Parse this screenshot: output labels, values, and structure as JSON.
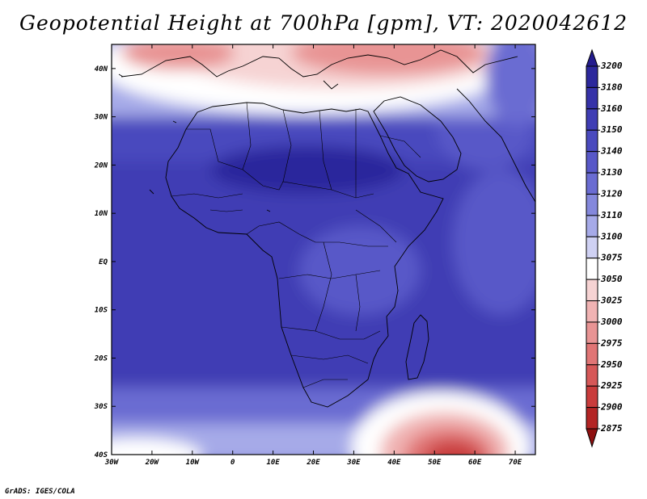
{
  "title": "Geopotential Height at 700hPa [gpm], VT: 2020042612",
  "footer": "GrADS: IGES/COLA",
  "map": {
    "projection": "latlon",
    "lon_range": [
      -30,
      75
    ],
    "lat_range": [
      -40,
      45
    ],
    "lat_ticks": [
      "40N",
      "30N",
      "20N",
      "10N",
      "EQ",
      "10S",
      "20S",
      "30S",
      "40S"
    ],
    "lon_ticks": [
      "30W",
      "20W",
      "10W",
      "0",
      "10E",
      "20E",
      "30E",
      "40E",
      "50E",
      "60E",
      "70E"
    ]
  },
  "colorbar": {
    "levels": [
      "3200",
      "3180",
      "3160",
      "3150",
      "3140",
      "3130",
      "3120",
      "3110",
      "3100",
      "3075",
      "3050",
      "3025",
      "3000",
      "2975",
      "2950",
      "2925",
      "2900",
      "2875"
    ],
    "colors": [
      "#241c8e",
      "#2c289c",
      "#3632a8",
      "#3f3db4",
      "#4a4abe",
      "#5858c8",
      "#6a6cd2",
      "#8488dc",
      "#a6aae8",
      "#cfd1f3",
      "#ffffff",
      "#f6d3d3",
      "#f0b3b3",
      "#e89494",
      "#e07575",
      "#d65858",
      "#c93c3c",
      "#b32525",
      "#8e1010"
    ]
  }
}
